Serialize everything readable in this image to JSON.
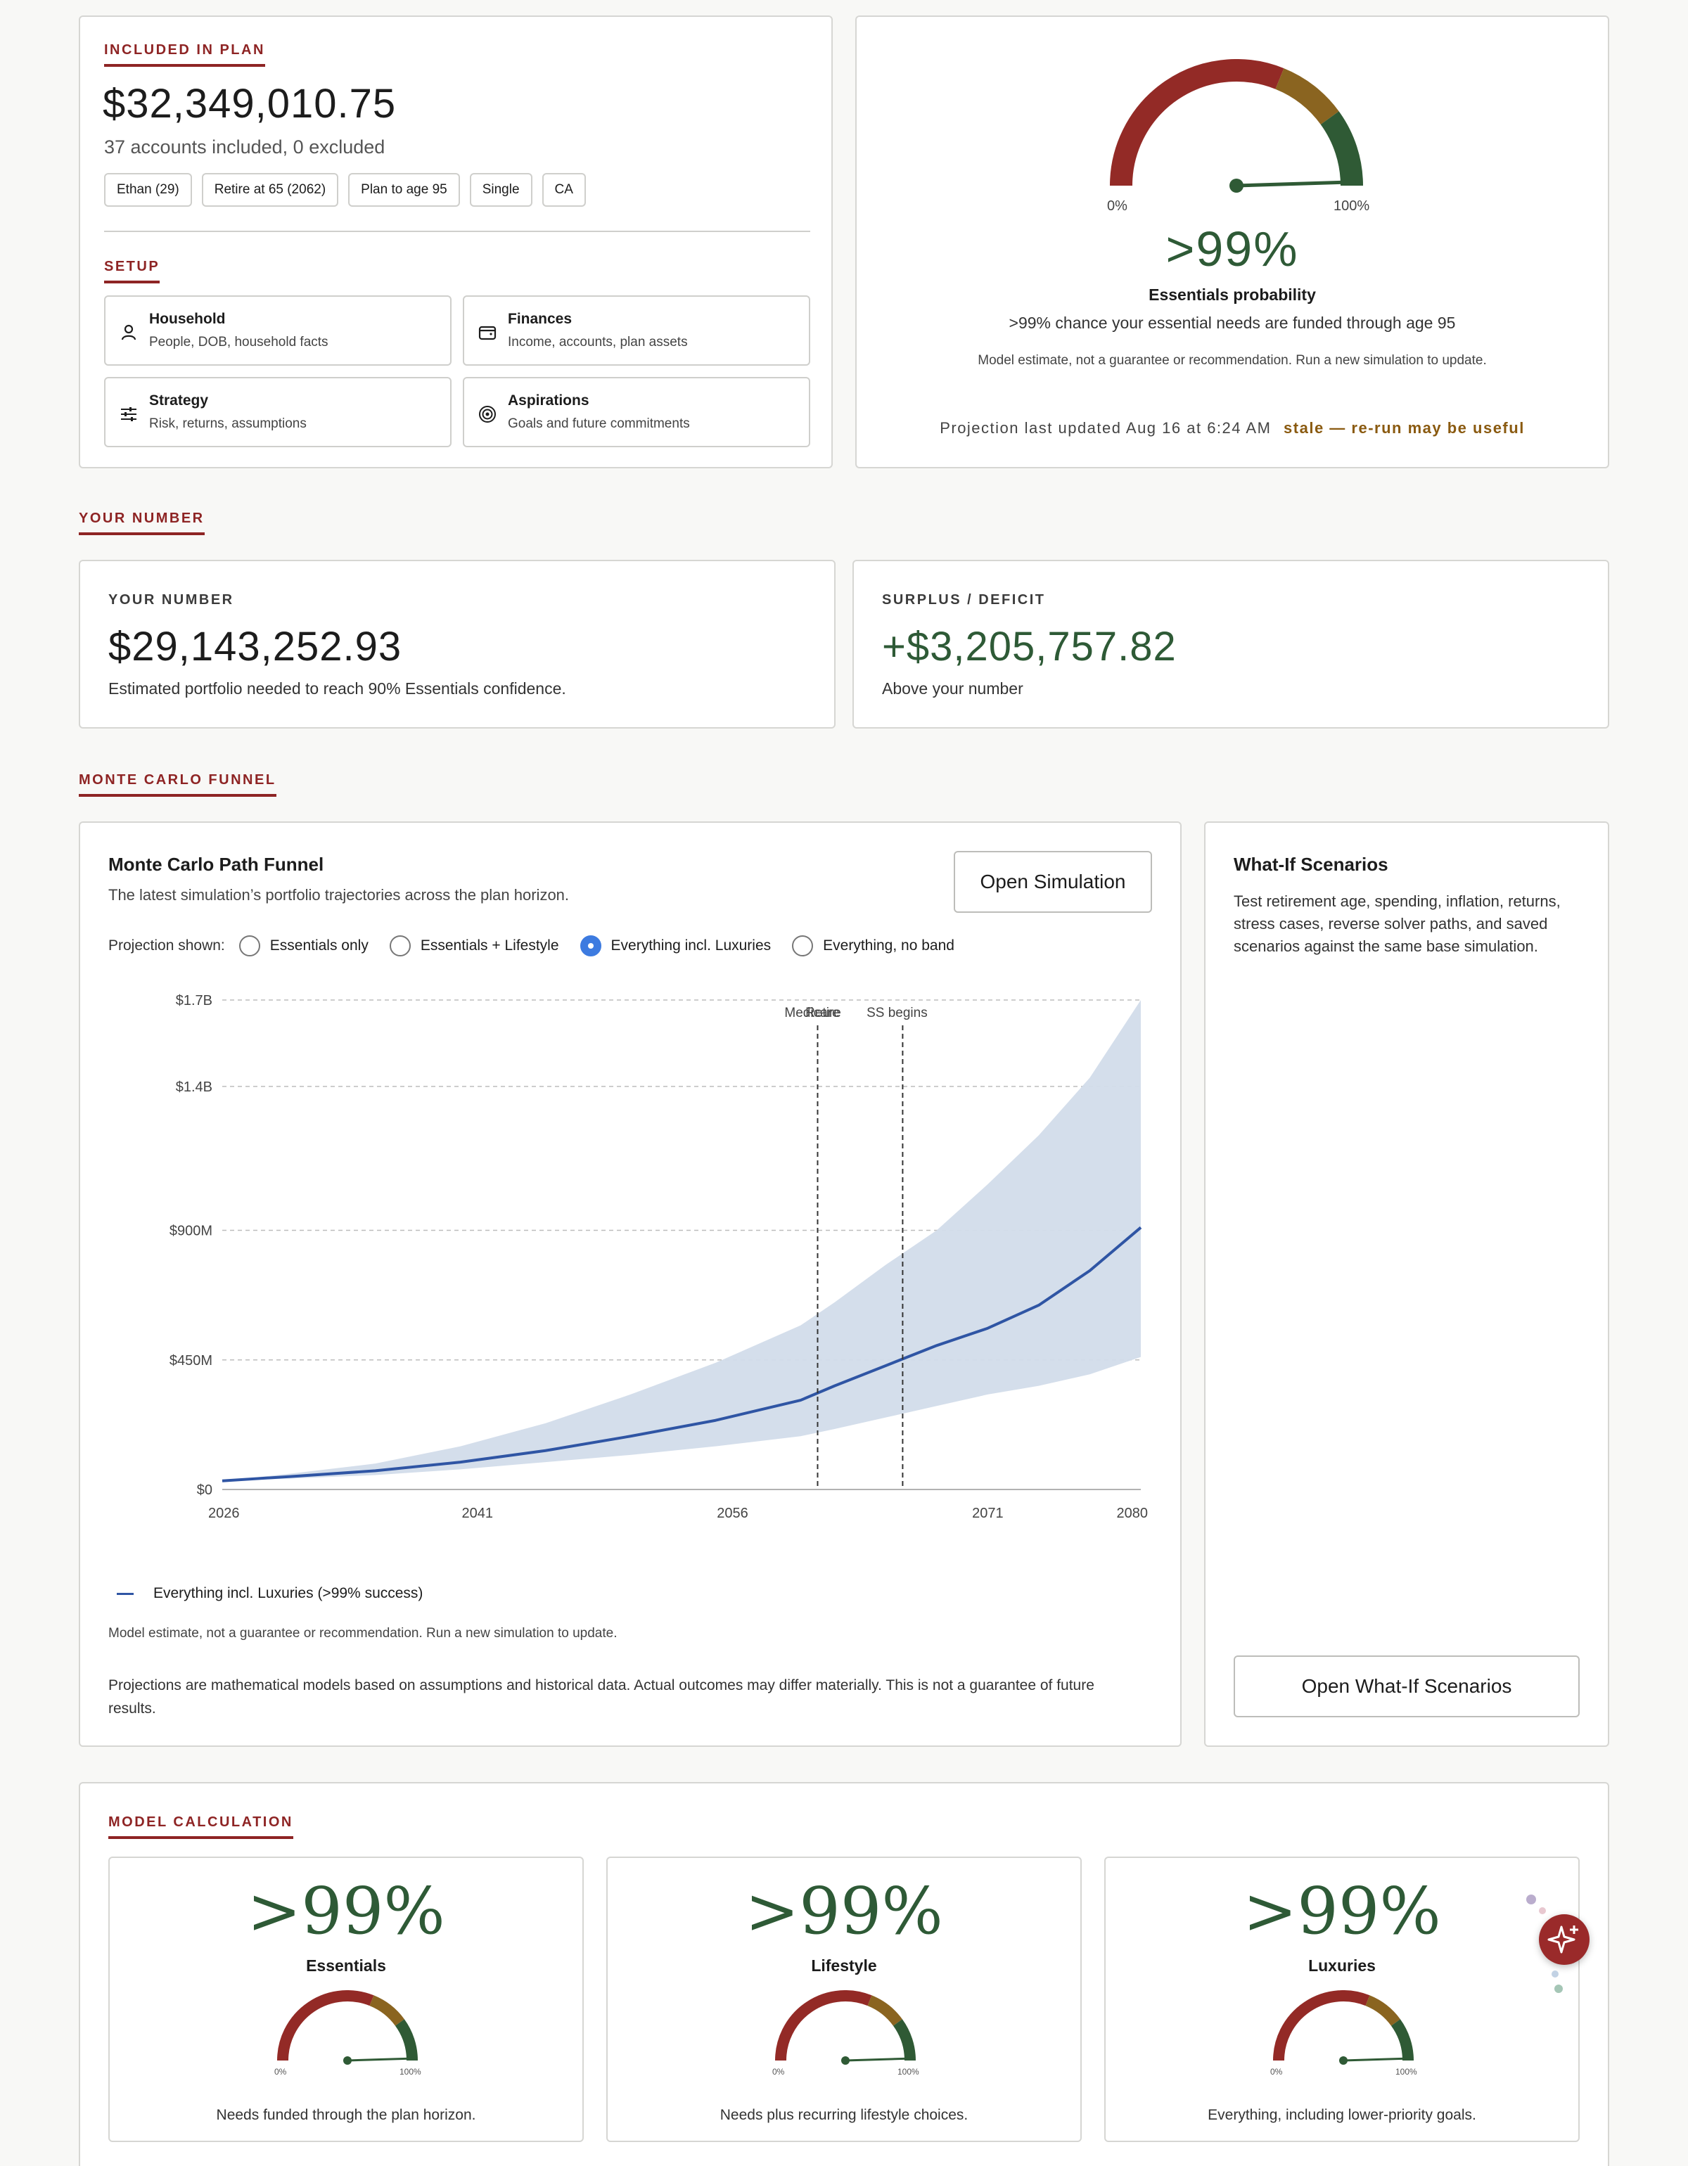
{
  "plan": {
    "eyebrow": "INCLUDED IN PLAN",
    "total": "$32,349,010.75",
    "accounts": "37 accounts included, 0 excluded",
    "chips": [
      "Ethan (29)",
      "Retire at 65 (2062)",
      "Plan to age 95",
      "Single",
      "CA"
    ],
    "setup_eyebrow": "SETUP",
    "setup": [
      {
        "title": "Household",
        "desc": "People, DOB, household facts",
        "icon": "person-icon"
      },
      {
        "title": "Finances",
        "desc": "Income, accounts, plan assets",
        "icon": "wallet-icon"
      },
      {
        "title": "Strategy",
        "desc": "Risk, returns, assumptions",
        "icon": "sliders-icon"
      },
      {
        "title": "Aspirations",
        "desc": "Goals and future commitments",
        "icon": "target-icon"
      }
    ]
  },
  "probability": {
    "gauge_min": "0%",
    "gauge_max": "100%",
    "value_fraction": 0.99,
    "value": ">99%",
    "title": "Essentials probability",
    "description": ">99% chance your essential needs are funded through age 95",
    "disclaimer": "Model estimate, not a guarantee or recommendation. Run a new simulation to update.",
    "updated": "Projection last updated Aug 16 at 6:24 AM",
    "stale": "stale — re-run may be useful"
  },
  "your_number_section": {
    "eyebrow": "YOUR NUMBER",
    "number_label": "YOUR NUMBER",
    "number_value": "$29,143,252.93",
    "number_desc": "Estimated portfolio needed to reach 90% Essentials confidence.",
    "surplus_label": "SURPLUS / DEFICIT",
    "surplus_value": "+$3,205,757.82",
    "surplus_desc": "Above your number"
  },
  "funnel": {
    "eyebrow": "MONTE CARLO FUNNEL",
    "title": "Monte Carlo Path Funnel",
    "subtitle": "The latest simulation’s portfolio trajectories across the plan horizon.",
    "open_button": "Open Simulation",
    "projection_label": "Projection shown:",
    "options": [
      "Essentials only",
      "Essentials + Lifestyle",
      "Everything incl. Luxuries",
      "Everything, no band"
    ],
    "selected_option": 2,
    "legend": "Everything incl. Luxuries (>99% success)",
    "disclaimer": "Model estimate, not a guarantee or recommendation. Run a new simulation to update.",
    "footnote": "Projections are mathematical models based on assumptions and historical data. Actual outcomes may differ materially. This is not a guarantee of future results."
  },
  "chart_data": {
    "type": "area",
    "x_ticks": [
      "2026",
      "2041",
      "2056",
      "2071",
      "2080"
    ],
    "y_ticks": [
      "$0",
      "$450M",
      "$900M",
      "$1.4B",
      "$1.7B"
    ],
    "xlim": [
      2026,
      2080
    ],
    "ylim": [
      0,
      1700
    ],
    "y_unit": "$M",
    "grid": true,
    "annotations": [
      {
        "label": "Medicare",
        "x": 2061
      },
      {
        "label": "Retire",
        "x": 2061
      },
      {
        "label": "SS begins",
        "x": 2066
      }
    ],
    "x": [
      2026,
      2030,
      2035,
      2040,
      2045,
      2050,
      2055,
      2060,
      2062,
      2065,
      2068,
      2071,
      2074,
      2077,
      2080
    ],
    "series": [
      {
        "name": "Everything incl. Luxuries (>99% success)",
        "median": [
          30,
          45,
          65,
          95,
          135,
          185,
          240,
          310,
          360,
          430,
          500,
          560,
          640,
          760,
          910
        ],
        "lower": [
          30,
          38,
          50,
          70,
          95,
          120,
          150,
          185,
          210,
          250,
          290,
          330,
          360,
          400,
          460
        ],
        "upper": [
          30,
          55,
          90,
          150,
          230,
          330,
          440,
          570,
          650,
          780,
          900,
          1060,
          1230,
          1430,
          1700
        ]
      }
    ]
  },
  "whatif": {
    "title": "What-If Scenarios",
    "description": "Test retirement age, spending, inflation, returns, stress cases, reverse solver paths, and saved scenarios against the same base simulation.",
    "button": "Open What-If Scenarios"
  },
  "model": {
    "eyebrow": "MODEL CALCULATION",
    "cards": [
      {
        "value": ">99%",
        "label": "Essentials",
        "desc": "Needs funded through the plan horizon.",
        "fraction": 0.99
      },
      {
        "value": ">99%",
        "label": "Lifestyle",
        "desc": "Needs plus recurring lifestyle choices.",
        "fraction": 0.99
      },
      {
        "value": ">99%",
        "label": "Luxuries",
        "desc": "Everything, including lower-priority goals.",
        "fraction": 0.99
      }
    ],
    "gauge_min": "0%",
    "gauge_max": "100%"
  },
  "colors": {
    "accent_red": "#8e2424",
    "gauge_red": "#932a26",
    "gauge_amber": "#8a6420",
    "gauge_green": "#2f5a35",
    "success_green": "#2e5a36",
    "stale": "#8a5a10",
    "line_blue": "#2f55a4",
    "band_blue": "#d2dcea"
  }
}
